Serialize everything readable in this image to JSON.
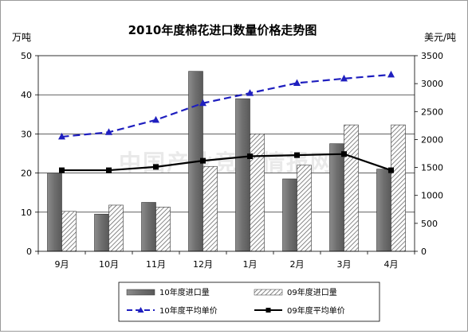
{
  "chart_data": {
    "type": "bar",
    "title": "2010年度棉花进口数量价格走势图",
    "ylabel_left": "万吨",
    "ylabel_right": "美元/吨",
    "categories": [
      "9月",
      "10月",
      "11月",
      "12月",
      "1月",
      "2月",
      "3月",
      "4月"
    ],
    "ylim_left": [
      0,
      50
    ],
    "yticks_left": [
      "0",
      "10",
      "20",
      "30",
      "40",
      "50"
    ],
    "ylim_right": [
      0,
      3500
    ],
    "yticks_right": [
      "0",
      "500",
      "1000",
      "1500",
      "2000",
      "2500",
      "3000",
      "3500"
    ],
    "grid": true,
    "legend_position": "bottom",
    "watermark": "中国产业竞争情报网",
    "series": [
      {
        "name": "10年度进口量",
        "type": "bar",
        "axis": "left",
        "color": "#808080",
        "values": [
          20,
          9.5,
          12.5,
          46,
          39,
          18.5,
          27.5,
          21
        ]
      },
      {
        "name": "09年度进口量",
        "type": "bar",
        "axis": "left",
        "pattern": "diagonal-hatch",
        "values": [
          10.2,
          11.8,
          11.3,
          21.7,
          30,
          22,
          32.3,
          32.3
        ]
      },
      {
        "name": "10年度平均单价",
        "type": "line",
        "axis": "right",
        "color": "#1f1fbf",
        "dash": true,
        "marker": "triangle",
        "values": [
          2050,
          2130,
          2350,
          2650,
          2830,
          3010,
          3090,
          3160
        ]
      },
      {
        "name": "09年度平均单价",
        "type": "line",
        "axis": "right",
        "color": "#000000",
        "marker": "square",
        "values": [
          1450,
          1450,
          1510,
          1620,
          1700,
          1720,
          1740,
          1450
        ]
      }
    ]
  }
}
